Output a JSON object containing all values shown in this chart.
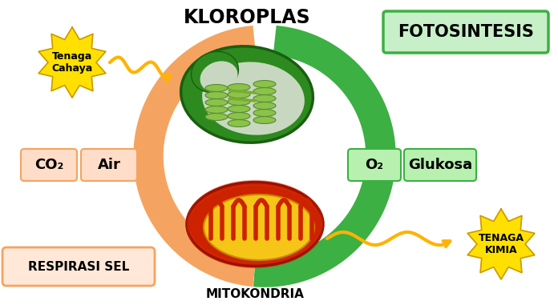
{
  "title": "KLOROPLAS",
  "title2": "MITOKONDRIA",
  "label_fotosintesis": "FOTOSINTESIS",
  "label_respirasi": "RESPIRASI SEL",
  "label_tenaga_cahaya": "Tenaga\nCahaya",
  "label_tenaga_kimia": "TENAGA\nKIMIA",
  "label_co2": "CO₂",
  "label_air": "Air",
  "label_o2": "O₂",
  "label_glukosa": "Glukosa",
  "bg_color": "#ffffff",
  "green_color": "#3cb043",
  "green_light": "#90EE90",
  "green_dark": "#228B22",
  "orange_color": "#f4a460",
  "orange_light": "#FFDAB9",
  "orange_lighter": "#FFF0E8",
  "yellow_color": "#FFE000",
  "yellow_dark": "#DAA500",
  "wave_color": "#FFB300",
  "fotosintesis_bg": "#c8f0c8",
  "fotosintesis_border": "#3cb043",
  "respirasi_bg": "#FFE8D8",
  "respirasi_border": "#f4a460",
  "box_green_bg": "#b8f0b0",
  "box_green_border": "#3cb043",
  "box_orange_bg": "#FFDDC8",
  "box_orange_border": "#f4a460"
}
